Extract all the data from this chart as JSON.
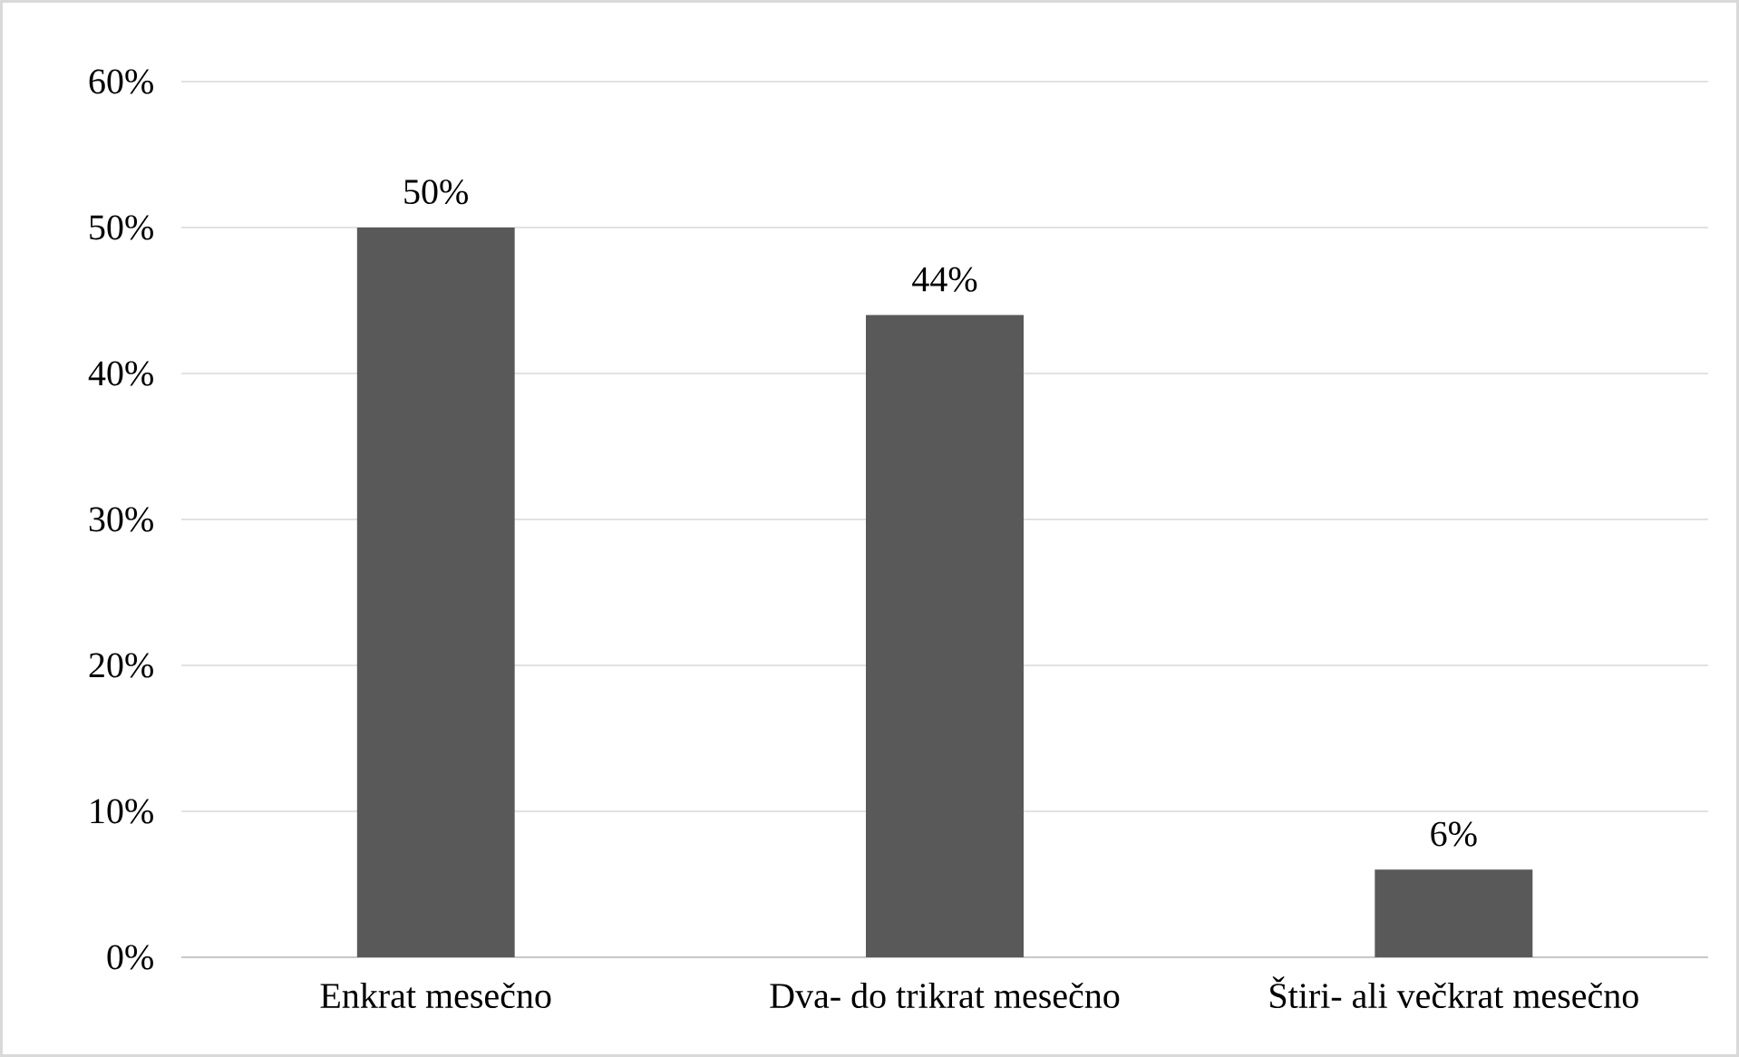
{
  "chart_data": {
    "type": "bar",
    "categories": [
      "Enkrat mesečno",
      "Dva- do trikrat mesečno",
      "Štiri- ali večkrat mesečno"
    ],
    "values": [
      50,
      44,
      6
    ],
    "value_labels": [
      "50%",
      "44%",
      "6%"
    ],
    "color": "#595959",
    "ylim": [
      0,
      60
    ],
    "yticks": [
      {
        "value": 0,
        "label": "0%"
      },
      {
        "value": 10,
        "label": "10%"
      },
      {
        "value": 20,
        "label": "20%"
      },
      {
        "value": 30,
        "label": "30%"
      },
      {
        "value": 40,
        "label": "40%"
      },
      {
        "value": 50,
        "label": "50%"
      },
      {
        "value": 60,
        "label": "60%"
      }
    ],
    "grid": "y"
  }
}
